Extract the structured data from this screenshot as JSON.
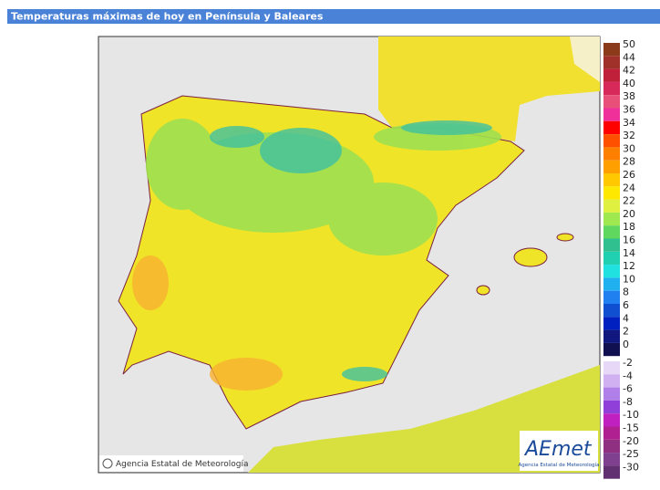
{
  "header": {
    "title": "Temperaturas máximas de hoy en Península y Baleares"
  },
  "legend": {
    "upper": [
      {
        "label": "50",
        "color": "#8b3a1a"
      },
      {
        "label": "44",
        "color": "#a0302a"
      },
      {
        "label": "42",
        "color": "#c0203a"
      },
      {
        "label": "40",
        "color": "#d82a5a"
      },
      {
        "label": "38",
        "color": "#e8507a"
      },
      {
        "label": "36",
        "color": "#f0309a"
      },
      {
        "label": "34",
        "color": "#ff0000"
      },
      {
        "label": "32",
        "color": "#ff5000"
      },
      {
        "label": "30",
        "color": "#ff8000"
      },
      {
        "label": "28",
        "color": "#ffa000"
      },
      {
        "label": "26",
        "color": "#ffc800"
      },
      {
        "label": "24",
        "color": "#ffe800"
      },
      {
        "label": "22",
        "color": "#e0f040"
      },
      {
        "label": "20",
        "color": "#a0e850"
      },
      {
        "label": "18",
        "color": "#60d860"
      },
      {
        "label": "16",
        "color": "#30c090"
      },
      {
        "label": "14",
        "color": "#20d0b0"
      },
      {
        "label": "12",
        "color": "#20e0e0"
      },
      {
        "label": "10",
        "color": "#20b0f0"
      },
      {
        "label": "8",
        "color": "#2080f0"
      },
      {
        "label": "6",
        "color": "#1050d0"
      },
      {
        "label": "4",
        "color": "#0020c0"
      },
      {
        "label": "2",
        "color": "#101880"
      },
      {
        "label": "0",
        "color": "#101050"
      }
    ],
    "lower": [
      {
        "label": "-2",
        "color": "#e8d8f8"
      },
      {
        "label": "-4",
        "color": "#d0b0f0"
      },
      {
        "label": "-6",
        "color": "#b080e8"
      },
      {
        "label": "-8",
        "color": "#9040d8"
      },
      {
        "label": "-10",
        "color": "#c020c0"
      },
      {
        "label": "-15",
        "color": "#b02090"
      },
      {
        "label": "-20",
        "color": "#903080"
      },
      {
        "label": "-25",
        "color": "#804090"
      },
      {
        "label": "-30",
        "color": "#603070"
      }
    ]
  },
  "credit": "Agencia Estatal de Meteorología",
  "logo": {
    "name": "AEmet",
    "subtitle": "Agencia Estatal de Meteorología"
  }
}
